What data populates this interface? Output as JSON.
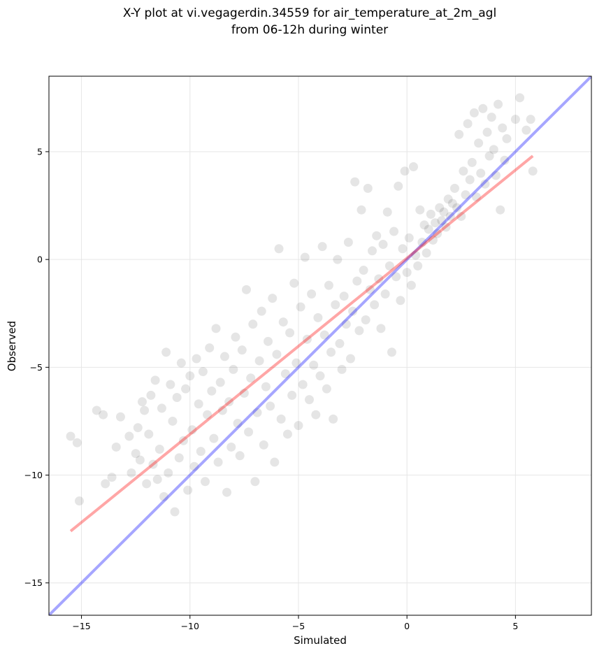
{
  "chart_data": {
    "type": "scatter",
    "title": "X-Y plot at vi.vegagerdin.34559 for air_temperature_at_2m_agl",
    "subtitle": "from 06-12h during winter",
    "xlabel": "Simulated",
    "ylabel": "Observed",
    "xlim": [
      -16.5,
      8.5
    ],
    "ylim": [
      -16.5,
      8.5
    ],
    "xticks": [
      -15,
      -10,
      -5,
      0,
      5
    ],
    "yticks": [
      -15,
      -10,
      -5,
      0,
      5
    ],
    "xtick_labels": [
      "−15",
      "−10",
      "−5",
      "0",
      "5"
    ],
    "ytick_labels": [
      "−15",
      "−10",
      "−5",
      "0",
      "5"
    ],
    "grid": true,
    "marker_color": "#000000",
    "identity_line": {
      "color": "#0000ff",
      "x": [
        -16.5,
        8.5
      ],
      "y": [
        -16.5,
        8.5
      ]
    },
    "regression_line": {
      "color": "#ff0000",
      "x": [
        -15.5,
        5.8
      ],
      "y": [
        -12.6,
        4.8
      ]
    },
    "points": [
      [
        -15.5,
        -8.2
      ],
      [
        -15.2,
        -8.5
      ],
      [
        -15.1,
        -11.2
      ],
      [
        -14.3,
        -7.0
      ],
      [
        -14.0,
        -7.2
      ],
      [
        -13.9,
        -10.4
      ],
      [
        -13.6,
        -10.1
      ],
      [
        -13.4,
        -8.7
      ],
      [
        -13.2,
        -7.3
      ],
      [
        -12.8,
        -8.2
      ],
      [
        -12.7,
        -9.9
      ],
      [
        -12.5,
        -9.0
      ],
      [
        -12.4,
        -7.8
      ],
      [
        -12.3,
        -9.3
      ],
      [
        -12.2,
        -6.6
      ],
      [
        -12.1,
        -7.0
      ],
      [
        -12.0,
        -10.4
      ],
      [
        -11.9,
        -8.1
      ],
      [
        -11.8,
        -6.3
      ],
      [
        -11.7,
        -9.5
      ],
      [
        -11.6,
        -5.6
      ],
      [
        -11.5,
        -10.2
      ],
      [
        -11.4,
        -8.8
      ],
      [
        -11.3,
        -6.9
      ],
      [
        -11.2,
        -11.0
      ],
      [
        -11.1,
        -4.3
      ],
      [
        -11.0,
        -9.9
      ],
      [
        -10.9,
        -5.8
      ],
      [
        -10.8,
        -7.5
      ],
      [
        -10.7,
        -11.7
      ],
      [
        -10.6,
        -6.4
      ],
      [
        -10.5,
        -9.2
      ],
      [
        -10.4,
        -4.8
      ],
      [
        -10.3,
        -8.4
      ],
      [
        -10.2,
        -6.0
      ],
      [
        -10.1,
        -10.7
      ],
      [
        -10.0,
        -5.4
      ],
      [
        -9.9,
        -7.9
      ],
      [
        -9.8,
        -9.6
      ],
      [
        -9.7,
        -4.6
      ],
      [
        -9.6,
        -6.7
      ],
      [
        -9.5,
        -8.9
      ],
      [
        -9.4,
        -5.2
      ],
      [
        -9.3,
        -10.3
      ],
      [
        -9.2,
        -7.2
      ],
      [
        -9.1,
        -4.1
      ],
      [
        -9.0,
        -6.1
      ],
      [
        -8.9,
        -8.3
      ],
      [
        -8.8,
        -3.2
      ],
      [
        -8.7,
        -9.4
      ],
      [
        -8.6,
        -5.7
      ],
      [
        -8.5,
        -7.0
      ],
      [
        -8.4,
        -4.5
      ],
      [
        -8.3,
        -10.8
      ],
      [
        -8.2,
        -6.6
      ],
      [
        -8.1,
        -8.7
      ],
      [
        -8.0,
        -5.1
      ],
      [
        -7.9,
        -3.6
      ],
      [
        -7.8,
        -7.6
      ],
      [
        -7.7,
        -9.1
      ],
      [
        -7.6,
        -4.2
      ],
      [
        -7.5,
        -6.2
      ],
      [
        -7.4,
        -1.4
      ],
      [
        -7.3,
        -8.0
      ],
      [
        -7.2,
        -5.5
      ],
      [
        -7.1,
        -3.0
      ],
      [
        -7.0,
        -10.3
      ],
      [
        -6.9,
        -7.1
      ],
      [
        -6.8,
        -4.7
      ],
      [
        -6.7,
        -2.4
      ],
      [
        -6.6,
        -8.6
      ],
      [
        -6.5,
        -5.9
      ],
      [
        -6.4,
        -3.8
      ],
      [
        -6.3,
        -6.8
      ],
      [
        -6.2,
        -1.8
      ],
      [
        -6.1,
        -9.4
      ],
      [
        -6.0,
        -4.4
      ],
      [
        -5.9,
        0.5
      ],
      [
        -5.8,
        -7.4
      ],
      [
        -5.7,
        -2.9
      ],
      [
        -5.6,
        -5.3
      ],
      [
        -5.5,
        -8.1
      ],
      [
        -5.4,
        -3.4
      ],
      [
        -5.3,
        -6.3
      ],
      [
        -5.2,
        -1.1
      ],
      [
        -5.1,
        -4.8
      ],
      [
        -5.0,
        -7.7
      ],
      [
        -4.9,
        -2.2
      ],
      [
        -4.8,
        -5.8
      ],
      [
        -4.7,
        0.1
      ],
      [
        -4.6,
        -3.7
      ],
      [
        -4.5,
        -6.5
      ],
      [
        -4.4,
        -1.6
      ],
      [
        -4.3,
        -4.9
      ],
      [
        -4.2,
        -7.2
      ],
      [
        -4.1,
        -2.7
      ],
      [
        -4.0,
        -5.4
      ],
      [
        -3.9,
        0.6
      ],
      [
        -3.8,
        -3.5
      ],
      [
        -3.7,
        -6.0
      ],
      [
        -3.6,
        -1.2
      ],
      [
        -3.5,
        -4.3
      ],
      [
        -3.4,
        -7.4
      ],
      [
        -3.3,
        -2.1
      ],
      [
        -3.2,
        0.0
      ],
      [
        -3.1,
        -3.9
      ],
      [
        -3.0,
        -5.1
      ],
      [
        -2.9,
        -1.7
      ],
      [
        -2.8,
        -3.0
      ],
      [
        -2.7,
        0.8
      ],
      [
        -2.6,
        -4.6
      ],
      [
        -2.5,
        -2.4
      ],
      [
        -2.4,
        3.6
      ],
      [
        -2.3,
        -1.0
      ],
      [
        -2.2,
        -3.3
      ],
      [
        -2.1,
        2.3
      ],
      [
        -2.0,
        -0.5
      ],
      [
        -1.9,
        -2.8
      ],
      [
        -1.8,
        3.3
      ],
      [
        -1.7,
        -1.4
      ],
      [
        -1.6,
        0.4
      ],
      [
        -1.5,
        -2.1
      ],
      [
        -1.4,
        1.1
      ],
      [
        -1.3,
        -0.9
      ],
      [
        -1.2,
        -3.2
      ],
      [
        -1.1,
        0.7
      ],
      [
        -1.0,
        -1.6
      ],
      [
        -0.9,
        2.2
      ],
      [
        -0.8,
        -0.3
      ],
      [
        -0.7,
        -4.3
      ],
      [
        -0.6,
        1.3
      ],
      [
        -0.5,
        -0.8
      ],
      [
        -0.4,
        3.4
      ],
      [
        -0.3,
        -1.9
      ],
      [
        -0.2,
        0.5
      ],
      [
        -0.1,
        4.1
      ],
      [
        0.0,
        -0.6
      ],
      [
        0.1,
        1.0
      ],
      [
        0.2,
        -1.2
      ],
      [
        0.3,
        4.3
      ],
      [
        0.4,
        0.2
      ],
      [
        0.5,
        -0.3
      ],
      [
        0.6,
        2.3
      ],
      [
        0.7,
        0.8
      ],
      [
        0.8,
        1.6
      ],
      [
        0.9,
        0.3
      ],
      [
        1.0,
        1.4
      ],
      [
        1.1,
        2.1
      ],
      [
        1.2,
        0.9
      ],
      [
        1.3,
        1.7
      ],
      [
        1.4,
        1.2
      ],
      [
        1.5,
        2.4
      ],
      [
        1.6,
        1.8
      ],
      [
        1.7,
        2.2
      ],
      [
        1.8,
        1.5
      ],
      [
        1.9,
        2.8
      ],
      [
        2.0,
        2.0
      ],
      [
        2.1,
        2.6
      ],
      [
        2.2,
        3.3
      ],
      [
        2.3,
        2.4
      ],
      [
        2.4,
        5.8
      ],
      [
        2.5,
        2.0
      ],
      [
        2.6,
        4.1
      ],
      [
        2.7,
        3.0
      ],
      [
        2.8,
        6.3
      ],
      [
        2.9,
        3.7
      ],
      [
        3.0,
        4.5
      ],
      [
        3.1,
        6.8
      ],
      [
        3.2,
        2.9
      ],
      [
        3.3,
        5.4
      ],
      [
        3.4,
        4.0
      ],
      [
        3.5,
        7.0
      ],
      [
        3.6,
        3.5
      ],
      [
        3.7,
        5.9
      ],
      [
        3.8,
        4.8
      ],
      [
        3.9,
        6.6
      ],
      [
        4.0,
        5.1
      ],
      [
        4.1,
        3.9
      ],
      [
        4.2,
        7.2
      ],
      [
        4.3,
        2.3
      ],
      [
        4.4,
        6.1
      ],
      [
        4.5,
        4.6
      ],
      [
        4.6,
        5.6
      ],
      [
        5.0,
        6.5
      ],
      [
        5.2,
        7.5
      ],
      [
        5.5,
        6.0
      ],
      [
        5.7,
        6.5
      ],
      [
        5.8,
        4.1
      ]
    ]
  }
}
